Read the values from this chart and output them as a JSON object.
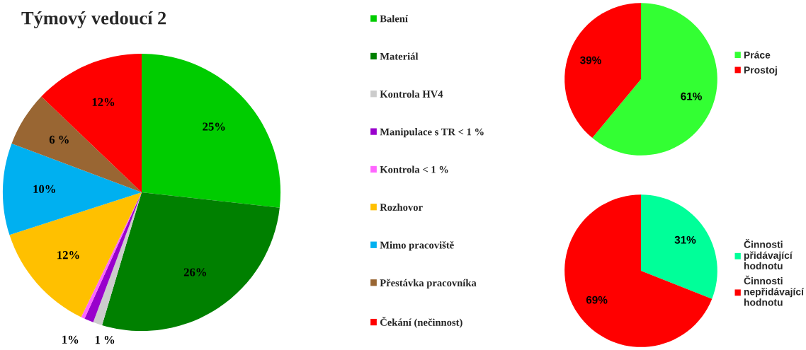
{
  "chart_data": [
    {
      "type": "pie",
      "title": "Týmový vedoucí 2",
      "categories": [
        "Balení",
        "Materiál",
        "Kontrola HV4",
        "Manipulace s TR < 1 %",
        "Kontrola < 1 %",
        "Rozhovor",
        "Mimo pracoviště",
        "Přestávka pracovníka",
        "Čekání (nečinnost)"
      ],
      "values": [
        25,
        26,
        1,
        1,
        0.4,
        12,
        10,
        6,
        12
      ],
      "colors": [
        "#00cc00",
        "#008000",
        "#cccccc",
        "#9900cc",
        "#ff66ff",
        "#ffc000",
        "#00b0f0",
        "#996633",
        "#ff0000"
      ],
      "value_labels": [
        "25%",
        "26%",
        "1 %",
        "1%",
        null,
        "12%",
        "10%",
        "6 %",
        "12%"
      ],
      "legend": "right"
    },
    {
      "type": "pie",
      "categories": [
        "Práce",
        "Prostoj"
      ],
      "values": [
        61,
        39
      ],
      "colors": [
        "#33ff33",
        "#ff0000"
      ],
      "value_labels": [
        "61%",
        "39%"
      ],
      "legend": "right"
    },
    {
      "type": "pie",
      "categories": [
        "Činnosti\npřidávající\nhodnotu",
        "Činnosti\nnepřidávající\nhodnotu"
      ],
      "values": [
        31,
        69
      ],
      "colors": [
        "#00ff99",
        "#ff0000"
      ],
      "value_labels": [
        "31%",
        "69%"
      ],
      "legend": "right"
    }
  ]
}
